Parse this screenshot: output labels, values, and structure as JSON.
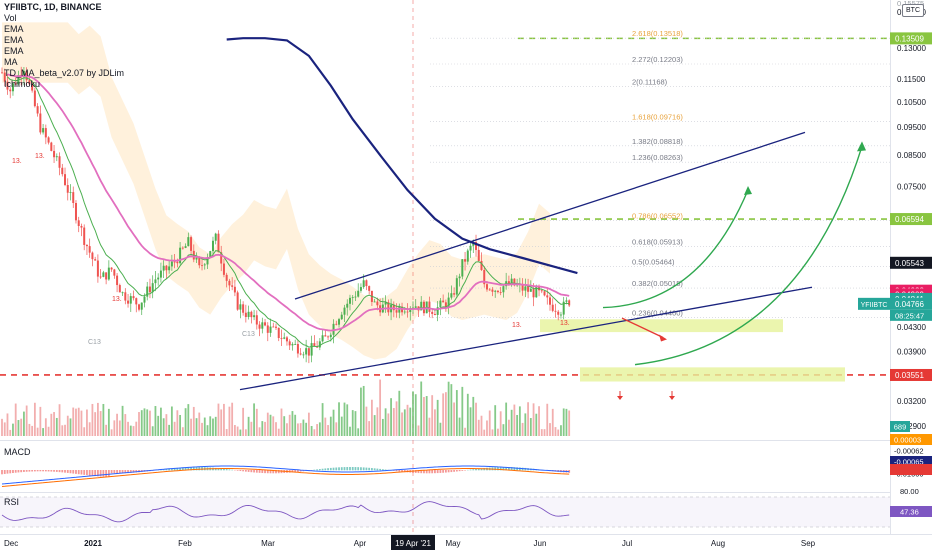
{
  "legend": {
    "symbol": "YFIIBTC, 1D, BINANCE",
    "indicators": [
      "Vol",
      "EMA",
      "EMA",
      "EMA",
      "MA",
      "TD_MA_beta_v2.07 by JDLim",
      "Ichimoku"
    ]
  },
  "currency_badge": "BTC",
  "macd_label": "MACD",
  "rsi_label": "RSI",
  "chart_data": {
    "type": "candlestick",
    "symbol": "YFIIBTC",
    "interval": "1D",
    "exchange": "BINANCE",
    "scale": "log",
    "price_range": [
      0.0296,
      0.1575
    ],
    "x_axis_labels": [
      "Dec",
      "2021",
      "Feb",
      "Mar",
      "Apr",
      "19 Apr '21",
      "May",
      "Jun",
      "Jul",
      "Aug",
      "Sep"
    ],
    "crosshair_date": "19 Apr '21",
    "price_ticks": [
      "0.15000",
      "0.13000",
      "0.11500",
      "0.10500",
      "0.09500",
      "0.08500",
      "0.07500",
      "0.04300",
      "0.03900",
      "0.03200",
      "0.02900"
    ],
    "price_ticks_top_partial": "0.15575",
    "price_tags": [
      {
        "value": "0.13509",
        "color": "#89c540"
      },
      {
        "value": "0.06594",
        "color": "#89c540"
      },
      {
        "value": "0.05543",
        "color": "#131722"
      },
      {
        "value": "0.04923",
        "color": "#e91e63"
      },
      {
        "value": "0.04909",
        "color": "#e91e63"
      },
      {
        "value": "0.04841",
        "color": "#26a69a"
      },
      {
        "value": "0.04766",
        "color": "#26a69a",
        "countdown": "08:25:47"
      },
      {
        "value": "0.03551",
        "color": "#e53935"
      }
    ],
    "symbol_tag": "YFIIBTC",
    "volume_tag": "689",
    "fibonacci": [
      {
        "ratio": "2.618",
        "value": "0.13518",
        "color": "#e8a33d"
      },
      {
        "ratio": "2.272",
        "value": "0.12203",
        "color": "#787b86"
      },
      {
        "ratio": "2",
        "value": "0.11168",
        "color": "#787b86"
      },
      {
        "ratio": "1.618",
        "value": "0.09716",
        "color": "#e8a33d"
      },
      {
        "ratio": "1.382",
        "value": "0.08818",
        "color": "#787b86"
      },
      {
        "ratio": "1.236",
        "value": "0.08263",
        "color": "#787b86"
      },
      {
        "ratio": "0.786",
        "value": "0.06552",
        "color": "#e8a33d"
      },
      {
        "ratio": "0.618",
        "value": "0.05913",
        "color": "#787b86"
      },
      {
        "ratio": "0.5",
        "value": "0.05464",
        "color": "#787b86"
      },
      {
        "ratio": "0.382",
        "value": "0.05015",
        "color": "#787b86"
      },
      {
        "ratio": "0.236",
        "value": "0.04460",
        "color": "#787b86"
      }
    ],
    "horizontal_levels": [
      {
        "value": 0.13509,
        "style": "dashed",
        "color": "#89c540"
      },
      {
        "value": 0.06594,
        "style": "dashed",
        "color": "#89c540"
      },
      {
        "value": 0.03551,
        "style": "dashed",
        "color": "#e53935"
      }
    ],
    "td_labels": [
      "13.",
      "13.",
      "13.",
      "13.",
      "C13",
      "C13",
      "13."
    ],
    "macd_ticks": [
      "0.00003",
      "-0.00062",
      "-0.00065",
      "-0.01000"
    ],
    "rsi_ticks": [
      "80.00",
      "47.36"
    ],
    "rsi_value": "47.36"
  },
  "colors": {
    "bull": "#26a69a",
    "bear": "#ef5350",
    "candle_up": "#4caf50",
    "ema_fast": "#4caf50",
    "ema_mid": "#e26fbf",
    "ma_slow": "#1a237e",
    "channel": "#1a237e",
    "cloud": "#ffe0b2",
    "arrow_up": "#2fa84f",
    "arrow_down": "#e53935",
    "zone": "#e6f29a"
  }
}
